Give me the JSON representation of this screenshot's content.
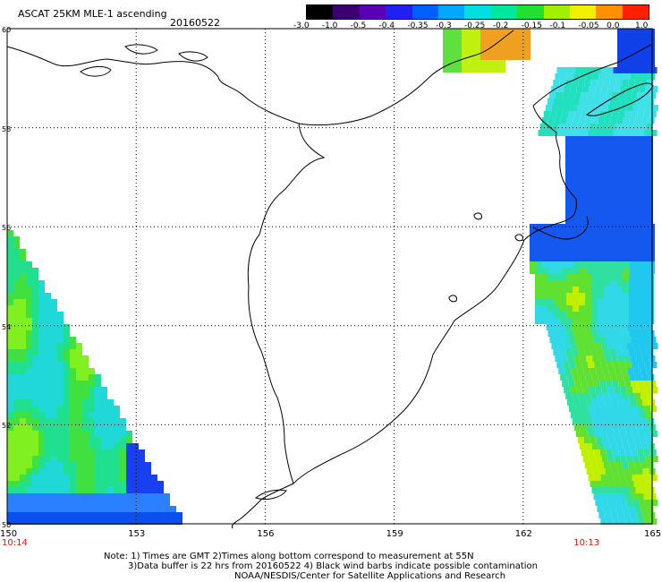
{
  "header": {
    "title": "ASCAT 25KM MLE-1 ascending",
    "date": "20160522"
  },
  "colorbar": {
    "tick_labels": [
      "-3.0",
      "-1.0",
      "-0.5",
      "-0.4",
      "-0.35",
      "-0.3",
      "-0.25",
      "-0.2",
      "-0.15",
      "-0.1",
      "-0.05",
      "0.0",
      "1.0"
    ],
    "colors": [
      "#000000",
      "#3a0070",
      "#5a00b4",
      "#2020f0",
      "#0060ff",
      "#00a8ff",
      "#00e0e0",
      "#00e8a0",
      "#20e030",
      "#a0f000",
      "#f0f000",
      "#ff9000",
      "#ff2000"
    ]
  },
  "map": {
    "lat_labels": [
      "60",
      "58",
      "56",
      "54",
      "52",
      "50"
    ],
    "lon_labels": [
      "150",
      "153",
      "156",
      "159",
      "162",
      "165"
    ],
    "time_labels": [
      {
        "text": "10:14",
        "lon": 150
      },
      {
        "text": "10:13",
        "lon": 163.3
      }
    ],
    "background": "#ffffff",
    "coastline_color": "#000000",
    "grid_color": "#000000"
  },
  "footer": {
    "note1": "Note: 1) Times are GMT 2)Times along bottom correspond to measurement at 55N",
    "note2": "3)Data buffer is 22 hrs from 20160522 4) Black wind barbs indicate possible contamination",
    "credit": "NOAA/NESDIS/Center for Satellite Applications and Research"
  }
}
